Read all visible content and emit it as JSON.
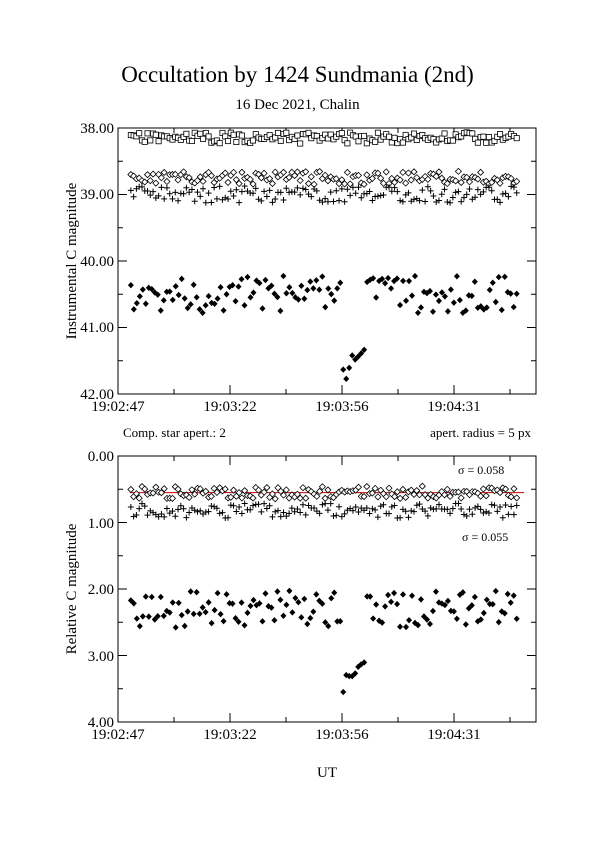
{
  "figure": {
    "title": "Occultation by 1424 Sundmania (2nd)",
    "subtitle": "16 Dec 2021, Chalin",
    "note_left": "Comp. star apert.: 2",
    "note_right": "apert. radius = 5 px",
    "xlabel": "UT"
  },
  "colors": {
    "axes": "#000000",
    "fit_line": "#cc0000"
  },
  "chart_data": [
    {
      "type": "scatter",
      "ylabel": "Instrumental C magnitude",
      "ylim": [
        38.0,
        42.0
      ],
      "y_inverted": true,
      "yticks": [
        "38.00",
        "39.00",
        "40.00",
        "41.00",
        "42.00"
      ],
      "xticks": [
        "19:02:47",
        "19:03:22",
        "19:03:56",
        "19:04:31"
      ],
      "xlim_seconds_after_19:02:47": [
        0,
        130
      ],
      "series": [
        {
          "marker": "open-square",
          "base": 38.15,
          "jitter": 0.06,
          "seed": 11,
          "n": 140
        },
        {
          "marker": "open-diamond",
          "base": 38.75,
          "jitter": 0.07,
          "seed": 23,
          "n": 140
        },
        {
          "marker": "plus",
          "base": 39.0,
          "jitter": 0.09,
          "seed": 37,
          "n": 140
        },
        {
          "marker": "filled-diamond",
          "base": 40.5,
          "jitter": 0.2,
          "seed": 51,
          "n": 130,
          "event": {
            "t_start": 70,
            "t_end": 77,
            "depth": 1.2
          }
        }
      ]
    },
    {
      "type": "scatter",
      "ylabel": "Relative C magnitude",
      "ylim": [
        0.0,
        4.0
      ],
      "y_inverted": true,
      "yticks": [
        "0.00",
        "1.00",
        "2.00",
        "3.00",
        "4.00"
      ],
      "xticks": [
        "19:02:47",
        "19:03:22",
        "19:03:56",
        "19:04:31"
      ],
      "xlim_seconds_after_19:02:47": [
        0,
        130
      ],
      "annotations": [
        "σ = 0.058",
        "σ = 0.055"
      ],
      "fit_level": 0.55,
      "series": [
        {
          "marker": "open-diamond",
          "base": 0.55,
          "jitter": 0.07,
          "seed": 61,
          "n": 140
        },
        {
          "marker": "plus",
          "base": 0.82,
          "jitter": 0.08,
          "seed": 73,
          "n": 140
        },
        {
          "marker": "filled-diamond",
          "base": 2.3,
          "jitter": 0.2,
          "seed": 89,
          "n": 130,
          "event": {
            "t_start": 70,
            "t_end": 77,
            "depth": 1.2
          }
        }
      ]
    }
  ]
}
